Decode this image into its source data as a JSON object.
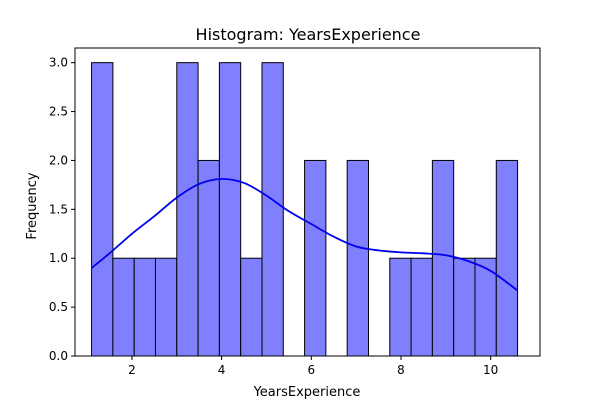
{
  "chart_data": {
    "type": "bar",
    "title": "Histogram: YearsExperience",
    "xlabel": "YearsExperience",
    "ylabel": "Frequency",
    "xlim": [
      0.73,
      11.1
    ],
    "ylim": [
      0,
      3.15
    ],
    "x_ticks": [
      2,
      4,
      6,
      8,
      10
    ],
    "y_ticks": [
      0.0,
      0.5,
      1.0,
      1.5,
      2.0,
      2.5,
      3.0
    ],
    "y_tick_labels": [
      "0.0",
      "0.5",
      "1.0",
      "1.5",
      "2.0",
      "2.5",
      "3.0"
    ],
    "bins": [
      {
        "x0": 1.1,
        "x1": 1.575,
        "count": 3
      },
      {
        "x0": 1.575,
        "x1": 2.05,
        "count": 1
      },
      {
        "x0": 2.05,
        "x1": 2.525,
        "count": 1
      },
      {
        "x0": 2.525,
        "x1": 3.0,
        "count": 1
      },
      {
        "x0": 3.0,
        "x1": 3.475,
        "count": 3
      },
      {
        "x0": 3.475,
        "x1": 3.95,
        "count": 2
      },
      {
        "x0": 3.95,
        "x1": 4.425,
        "count": 3
      },
      {
        "x0": 4.425,
        "x1": 4.9,
        "count": 1
      },
      {
        "x0": 4.9,
        "x1": 5.375,
        "count": 3
      },
      {
        "x0": 5.375,
        "x1": 5.85,
        "count": 0
      },
      {
        "x0": 5.85,
        "x1": 6.325,
        "count": 2
      },
      {
        "x0": 6.325,
        "x1": 6.8,
        "count": 0
      },
      {
        "x0": 6.8,
        "x1": 7.275,
        "count": 2
      },
      {
        "x0": 7.275,
        "x1": 7.75,
        "count": 0
      },
      {
        "x0": 7.75,
        "x1": 8.225,
        "count": 1
      },
      {
        "x0": 8.225,
        "x1": 8.7,
        "count": 1
      },
      {
        "x0": 8.7,
        "x1": 9.175,
        "count": 2
      },
      {
        "x0": 9.175,
        "x1": 9.65,
        "count": 1
      },
      {
        "x0": 9.65,
        "x1": 10.125,
        "count": 1
      },
      {
        "x0": 10.125,
        "x1": 10.6,
        "count": 2
      }
    ],
    "kde": {
      "x": [
        1.1,
        1.5,
        2.0,
        2.5,
        3.0,
        3.5,
        4.0,
        4.5,
        5.0,
        5.5,
        6.0,
        6.5,
        7.0,
        7.5,
        8.0,
        8.5,
        9.0,
        9.5,
        10.0,
        10.6
      ],
      "y": [
        0.9,
        1.05,
        1.25,
        1.43,
        1.62,
        1.76,
        1.81,
        1.77,
        1.64,
        1.48,
        1.35,
        1.22,
        1.12,
        1.08,
        1.06,
        1.05,
        1.03,
        0.97,
        0.87,
        0.67
      ]
    },
    "grid": false,
    "colors": {
      "bar_fill": "#8080ff",
      "bar_edge": "#000000",
      "kde_line": "#0000ee",
      "axes": "#000000"
    }
  }
}
